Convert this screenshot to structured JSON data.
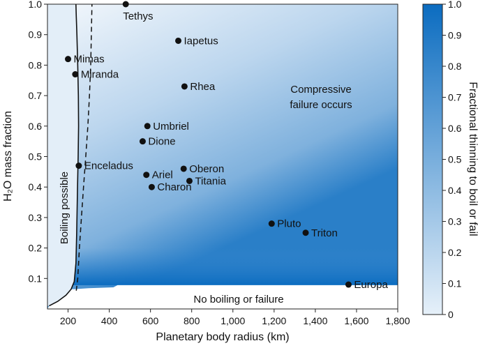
{
  "chart_data": {
    "type": "scatter",
    "xlabel": "Planetary body radius (km)",
    "ylabel": "H₂O mass fraction",
    "xlim": [
      100,
      1800
    ],
    "ylim": [
      0,
      1.0
    ],
    "x_ticks": [
      "200",
      "400",
      "600",
      "800",
      "1,000",
      "1,200",
      "1,400",
      "1,600",
      "1,800"
    ],
    "y_ticks": [
      "0.1",
      "0.2",
      "0.3",
      "0.4",
      "0.5",
      "0.6",
      "0.7",
      "0.8",
      "0.9",
      "1.0"
    ],
    "x_tick_values": [
      200,
      400,
      600,
      800,
      1000,
      1200,
      1400,
      1600,
      1800
    ],
    "y_tick_values": [
      0.1,
      0.2,
      0.3,
      0.4,
      0.5,
      0.6,
      0.7,
      0.8,
      0.9,
      1.0
    ],
    "points": [
      {
        "name": "Tethys",
        "x": 480,
        "y": 1.0
      },
      {
        "name": "Iapetus",
        "x": 735,
        "y": 0.88
      },
      {
        "name": "Mimas",
        "x": 200,
        "y": 0.82
      },
      {
        "name": "Miranda",
        "x": 235,
        "y": 0.77
      },
      {
        "name": "Rhea",
        "x": 765,
        "y": 0.73
      },
      {
        "name": "Umbriel",
        "x": 585,
        "y": 0.6
      },
      {
        "name": "Dione",
        "x": 562,
        "y": 0.55
      },
      {
        "name": "Enceladus",
        "x": 252,
        "y": 0.47
      },
      {
        "name": "Oberon",
        "x": 761,
        "y": 0.46
      },
      {
        "name": "Ariel",
        "x": 580,
        "y": 0.44
      },
      {
        "name": "Titania",
        "x": 789,
        "y": 0.42
      },
      {
        "name": "Charon",
        "x": 606,
        "y": 0.4
      },
      {
        "name": "Pluto",
        "x": 1188,
        "y": 0.28
      },
      {
        "name": "Triton",
        "x": 1353,
        "y": 0.25
      },
      {
        "name": "Europa",
        "x": 1561,
        "y": 0.08
      }
    ],
    "boundary_solid": [
      [
        108,
        0.01
      ],
      [
        150,
        0.025
      ],
      [
        190,
        0.045
      ],
      [
        215,
        0.065
      ],
      [
        230,
        0.09
      ],
      [
        238,
        0.15
      ],
      [
        242,
        0.25
      ],
      [
        246,
        0.4
      ],
      [
        249,
        0.5
      ],
      [
        251,
        0.6
      ],
      [
        250,
        0.7
      ],
      [
        247,
        0.8
      ],
      [
        243,
        0.9
      ],
      [
        240,
        0.96
      ],
      [
        238,
        1.0
      ]
    ],
    "boundary_dashed": [
      [
        240,
        0.06
      ],
      [
        247,
        0.1
      ],
      [
        255,
        0.2
      ],
      [
        265,
        0.3
      ],
      [
        275,
        0.4
      ],
      [
        286,
        0.5
      ],
      [
        296,
        0.6
      ],
      [
        304,
        0.7
      ],
      [
        310,
        0.8
      ],
      [
        313,
        0.9
      ],
      [
        316,
        1.0
      ]
    ],
    "no_failure_threshold": [
      [
        230,
        0.065
      ],
      [
        300,
        0.068
      ],
      [
        420,
        0.071
      ],
      [
        440,
        0.078
      ],
      [
        1800,
        0.078
      ]
    ],
    "annotations": {
      "boiling": "Boiling possible",
      "compressive_line1": "Compressive",
      "compressive_line2": "failure occurs",
      "no_boiling": "No boiling or failure"
    },
    "colorbar": {
      "label": "Fractional thinning to boil or fail",
      "range": [
        0,
        1.0
      ],
      "ticks": [
        "0",
        "0.1",
        "0.2",
        "0.3",
        "0.4",
        "0.5",
        "0.6",
        "0.7",
        "0.8",
        "0.9",
        "1.0"
      ],
      "tick_values": [
        0,
        0.1,
        0.2,
        0.3,
        0.4,
        0.5,
        0.6,
        0.7,
        0.8,
        0.9,
        1.0
      ],
      "color_low": "#e6f0f9",
      "color_high": "#0b6cc0"
    },
    "grid": false
  }
}
